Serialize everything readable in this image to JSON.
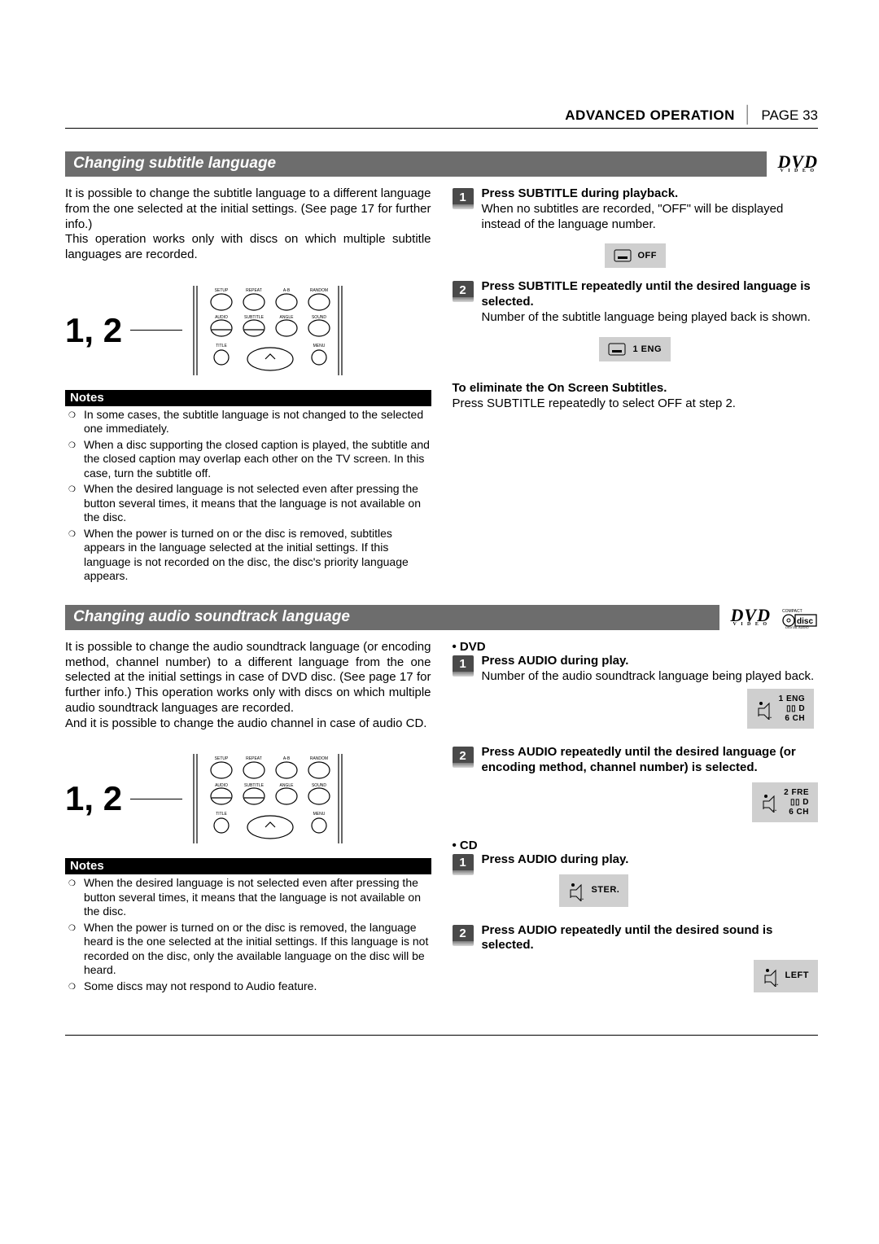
{
  "header": {
    "section": "ADVANCED OPERATION",
    "page": "PAGE 33"
  },
  "sec1": {
    "title": "Changing subtitle language",
    "intro1": "It is possible to change the subtitle language to a different language from the one selected at the initial settings. (See page 17 for further info.)",
    "intro2": "This operation works only with discs on which multiple subtitle languages are recorded.",
    "fig_label": "1, 2",
    "notes_header": "Notes",
    "notes": [
      "In some cases, the subtitle language is not changed to the selected one immediately.",
      "When a disc supporting the closed caption is played, the subtitle and the closed caption may overlap each other on the TV screen. In this case, turn the subtitle off.",
      "When the desired language is not selected even after pressing the button several times, it means that the language is not available on the disc.",
      "When the power is turned on or the disc is removed, subtitles appears in the language selected at the initial settings. If this language is not recorded on the disc, the disc's priority language appears."
    ],
    "step1_title": "Press SUBTITLE during playback.",
    "step1_body": "When no subtitles are recorded, \"OFF\" will be displayed instead of the language number.",
    "osd1": "OFF",
    "step2_title": "Press SUBTITLE repeatedly until the desired language is selected.",
    "step2_body": "Number of the subtitle language being played back is shown.",
    "osd2": "1  ENG",
    "elim_title": "To eliminate the On Screen Subtitles.",
    "elim_body": "Press SUBTITLE repeatedly to select OFF at step 2."
  },
  "sec2": {
    "title": "Changing audio soundtrack language",
    "intro": "It is possible to change the audio soundtrack language (or encoding method, channel number) to a different language from the one selected at the initial settings in case of DVD disc. (See page 17 for further info.) This operation works only with discs on which multiple audio soundtrack languages are recorded.",
    "intro2": "And it is possible to change the audio channel in case of audio CD.",
    "fig_label": "1, 2",
    "notes_header": "Notes",
    "notes": [
      "When the desired language is not selected even after pressing the button several times, it means that the language is not available on the disc.",
      "When the power is turned on or the disc is removed, the language heard is the one selected at the initial settings. If this language is not recorded on the disc, only the available language on the disc will be heard.",
      "Some discs may not respond to Audio feature."
    ],
    "dvdLabel": "• DVD",
    "cdLabel": "• CD",
    "dvd_step1_title": "Press AUDIO during play.",
    "dvd_step1_body": "Number of the audio soundtrack language being played back.",
    "dvd_osd1": {
      "l1": "1  ENG",
      "l2": "▯▯ D",
      "l3": "6  CH"
    },
    "dvd_step2_title": "Press AUDIO repeatedly until the desired language (or encoding method, channel number) is selected.",
    "dvd_osd2": {
      "l1": "2  FRE",
      "l2": "▯▯ D",
      "l3": "6  CH"
    },
    "cd_step1_title": "Press AUDIO during play.",
    "cd_osd1": "STER.",
    "cd_step2_title": "Press AUDIO repeatedly until the desired sound is selected.",
    "cd_osd2": "LEFT"
  },
  "remote": {
    "row1": [
      "SETUP",
      "REPEAT",
      "A-B",
      "RANDOM"
    ],
    "row2": [
      "AUDIO",
      "SUBTITLE",
      "ANGLE",
      "SOUND"
    ],
    "row3": [
      "TITLE",
      "",
      "",
      "MENU"
    ]
  },
  "colors": {
    "title_bg": "#6d6d6d",
    "osd_bg": "#cfcfcf",
    "badge_bg": "#4a4a4a"
  }
}
